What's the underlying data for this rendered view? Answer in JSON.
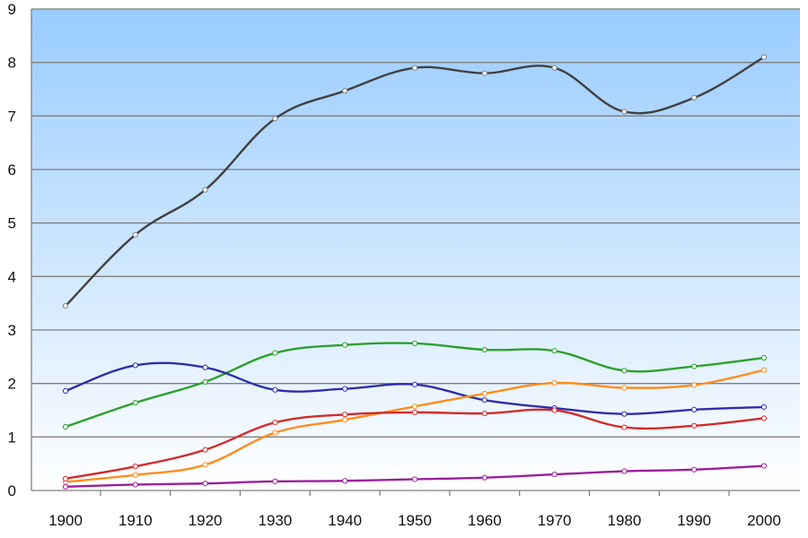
{
  "chart_data": {
    "type": "line",
    "title": "",
    "xlabel": "",
    "ylabel": "",
    "x": [
      1900,
      1910,
      1920,
      1930,
      1940,
      1950,
      1960,
      1970,
      1980,
      1990,
      2000
    ],
    "x_tick_labels": [
      "1900",
      "1910",
      "1920",
      "1930",
      "1940",
      "1950",
      "1960",
      "1970",
      "1980",
      "1990",
      "2000"
    ],
    "y_tick_labels": [
      "0",
      "1",
      "2",
      "3",
      "4",
      "5",
      "6",
      "7",
      "8",
      "9"
    ],
    "ylim": [
      0,
      9
    ],
    "grid": true,
    "legend": "none",
    "series": [
      {
        "color": "#404040",
        "marker_color": "#808080",
        "values": [
          3.45,
          4.78,
          5.62,
          6.95,
          7.47,
          7.9,
          7.8,
          7.9,
          7.08,
          7.34,
          8.1
        ]
      },
      {
        "color": "#2ca02c",
        "marker_color": "#2ca02c",
        "values": [
          1.19,
          1.64,
          2.03,
          2.57,
          2.72,
          2.75,
          2.63,
          2.61,
          2.24,
          2.32,
          2.48
        ]
      },
      {
        "color": "#2e2ea8",
        "marker_color": "#2e2ea8",
        "values": [
          1.86,
          2.34,
          2.3,
          1.88,
          1.9,
          1.98,
          1.69,
          1.54,
          1.43,
          1.51,
          1.56
        ]
      },
      {
        "color": "#ff8c1a",
        "marker_color": "#ff8c1a",
        "values": [
          0.16,
          0.29,
          0.48,
          1.08,
          1.32,
          1.57,
          1.81,
          2.01,
          1.92,
          1.97,
          2.25
        ]
      },
      {
        "color": "#d42a2a",
        "marker_color": "#d42a2a",
        "values": [
          0.22,
          0.45,
          0.76,
          1.27,
          1.42,
          1.46,
          1.44,
          1.5,
          1.18,
          1.21,
          1.35
        ]
      },
      {
        "color": "#9b1f9b",
        "marker_color": "#9b1f9b",
        "values": [
          0.07,
          0.11,
          0.13,
          0.17,
          0.18,
          0.21,
          0.24,
          0.3,
          0.36,
          0.39,
          0.46
        ]
      }
    ]
  },
  "colors": {
    "plot_bg_top": "#99ccff",
    "plot_bg_bottom": "#ffffff",
    "grid": "#7f7f7f",
    "text": "#111111"
  }
}
